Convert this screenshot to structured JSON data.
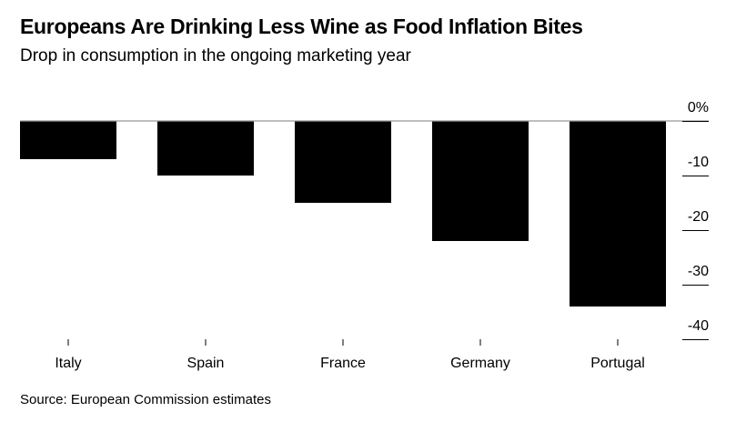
{
  "chart_data": {
    "type": "bar",
    "title": "Europeans Are Drinking Less Wine as Food Inflation Bites",
    "subtitle": "Drop in consumption in the ongoing marketing year",
    "source": "Source: European Commission estimates",
    "categories": [
      "Italy",
      "Spain",
      "France",
      "Germany",
      "Portugal"
    ],
    "values": [
      -7,
      -10,
      -15,
      -22,
      -34
    ],
    "ylim": [
      -40,
      0
    ],
    "yticks": [
      0,
      -10,
      -20,
      -30,
      -40
    ],
    "ytick_labels": [
      "0%",
      "-10",
      "-20",
      "-30",
      "-40"
    ],
    "bar_color": "#000000",
    "grid": false
  }
}
